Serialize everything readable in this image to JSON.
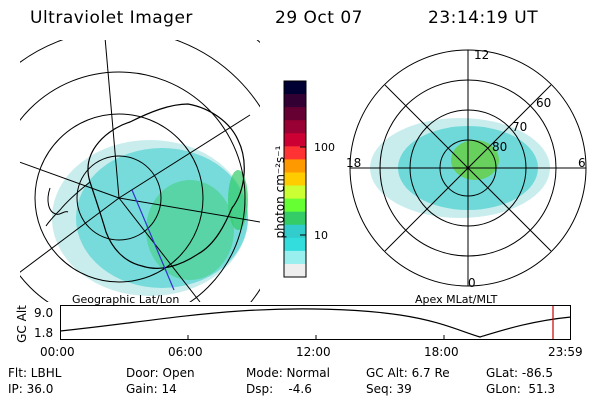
{
  "header": {
    "title": "Ultraviolet Imager",
    "date": "29 Oct 07",
    "time": "23:14:19 UT"
  },
  "colorbar": {
    "unit_label": "photon cm⁻²s⁻¹",
    "ticks": [
      "100",
      "10"
    ],
    "colors": [
      "#000033",
      "#330033",
      "#660033",
      "#990033",
      "#cc0033",
      "#ff3333",
      "#ff9900",
      "#ffcc00",
      "#ccff33",
      "#66ff33",
      "#33cc66",
      "#33cccc",
      "#33dddd",
      "#99eeee",
      "#eeeeee"
    ]
  },
  "geo_panel": {
    "caption": "Geographic Lat/Lon"
  },
  "apex_panel": {
    "caption": "Apex MLat/MLT",
    "mlt_labels": {
      "top": "12",
      "bottom": "0",
      "left": "18",
      "right": "6"
    },
    "lat_labels": [
      "60",
      "70",
      "80"
    ]
  },
  "timeline": {
    "axis_label": "GC Alt",
    "y_ticks": [
      "9.0",
      "1.8"
    ],
    "x_ticks": [
      "00:00",
      "06:00",
      "12:00",
      "18:00",
      "23:59"
    ],
    "marker_color": "#cc0000"
  },
  "info": {
    "filter": "Flt: LBHL",
    "door": "Door: Open",
    "mode": "Mode: Normal",
    "gc_alt": "GC Alt: 6.7 Re",
    "glat": "GLat: -86.5",
    "ip": "IP: 36.0",
    "gain": "Gain: 14",
    "dsp": "Dsp:    -4.6",
    "seq": "Seq: 39",
    "glon": "GLon:  51.3"
  }
}
